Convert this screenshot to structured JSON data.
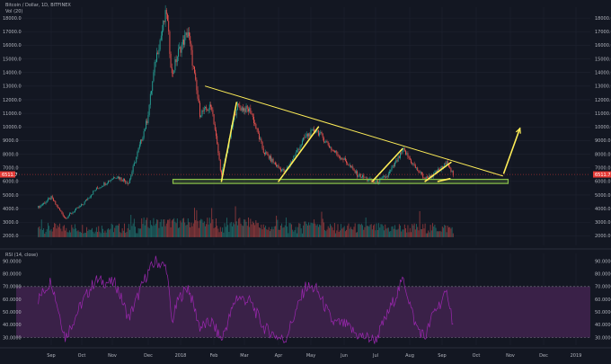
{
  "header": {
    "symbol_line": "Bitcoin / Dollar, 1D, BITFINEX",
    "volume_label": "Vol (20)"
  },
  "rsi_header": {
    "label": "RSI (14, close)"
  },
  "colors": {
    "background": "#131722",
    "up_candle": "#26a69a",
    "down_candle": "#ef5350",
    "trendline": "#ffee58",
    "support_band": "#8bc34a",
    "rsi_line": "#9c27b0",
    "rsi_band": "#3a2148",
    "price_tag": "#e53935"
  },
  "chart_data": [
    {
      "type": "candlestick",
      "title": "Bitcoin / Dollar, 1D, BITFINEX",
      "x_ticks": [
        "Sep",
        "Oct",
        "Nov",
        "Dec",
        "2018",
        "Feb",
        "Mar",
        "Apr",
        "May",
        "Jun",
        "Jul",
        "Aug",
        "Sep",
        "Oct",
        "Nov",
        "Dec",
        "2019"
      ],
      "y_ticks": [
        2000,
        3000,
        4000,
        5000,
        6000,
        7000,
        8000,
        9000,
        10000,
        11000,
        12000,
        13000,
        14000,
        15000,
        16000,
        17000,
        18000
      ],
      "y_tick_labels": [
        "2000.0",
        "3000.0",
        "4000.0",
        "5000.0",
        "6000.0",
        "7000.0",
        "8000.0",
        "9000.0",
        "10000.0",
        "11000.0",
        "12000.0",
        "13000.0",
        "14000.0",
        "15000.0",
        "16000.0",
        "17000.0",
        "18000.0"
      ],
      "ylim": [
        1300,
        18800
      ],
      "last_price": 6511.7,
      "last_price_label": "6511.7",
      "close_path": [
        [
          "2017-08-20",
          4100
        ],
        [
          "2017-09-01",
          4800
        ],
        [
          "2017-09-14",
          3300
        ],
        [
          "2017-09-30",
          4300
        ],
        [
          "2017-10-12",
          5400
        ],
        [
          "2017-10-31",
          6400
        ],
        [
          "2017-11-12",
          5900
        ],
        [
          "2017-11-29",
          10500
        ],
        [
          "2017-12-07",
          15000
        ],
        [
          "2017-12-17",
          18500
        ],
        [
          "2017-12-22",
          13800
        ],
        [
          "2017-12-28",
          15500
        ],
        [
          "2018-01-06",
          17000
        ],
        [
          "2018-01-17",
          11000
        ],
        [
          "2018-01-28",
          11500
        ],
        [
          "2018-02-06",
          6400
        ],
        [
          "2018-02-20",
          11500
        ],
        [
          "2018-03-05",
          11200
        ],
        [
          "2018-03-17",
          8200
        ],
        [
          "2018-03-31",
          7000
        ],
        [
          "2018-04-06",
          6700
        ],
        [
          "2018-04-25",
          9300
        ],
        [
          "2018-05-05",
          9800
        ],
        [
          "2018-05-20",
          8300
        ],
        [
          "2018-06-01",
          7500
        ],
        [
          "2018-06-12",
          6500
        ],
        [
          "2018-06-29",
          5900
        ],
        [
          "2018-07-10",
          6400
        ],
        [
          "2018-07-25",
          8300
        ],
        [
          "2018-08-05",
          7000
        ],
        [
          "2018-08-14",
          6200
        ],
        [
          "2018-08-22",
          6500
        ],
        [
          "2018-09-04",
          7400
        ],
        [
          "2018-09-09",
          6500
        ]
      ],
      "trendlines": [
        {
          "from": [
            "2018-01-22",
            13000
          ],
          "to": [
            "2018-10-25",
            6400
          ]
        },
        {
          "from": [
            "2018-02-06",
            6000
          ],
          "to": [
            "2018-02-20",
            11800
          ]
        },
        {
          "from": [
            "2018-03-31",
            6000
          ],
          "to": [
            "2018-05-07",
            10000
          ]
        },
        {
          "from": [
            "2018-06-26",
            6000
          ],
          "to": [
            "2018-07-24",
            8400
          ]
        },
        {
          "from": [
            "2018-08-14",
            6000
          ],
          "to": [
            "2018-09-07",
            7400
          ]
        },
        {
          "from": [
            "2018-08-26",
            6000
          ],
          "to": [
            "2018-09-06",
            6200
          ]
        },
        {
          "from": [
            "2018-10-26",
            6600
          ],
          "to": [
            "2018-11-10",
            9900
          ]
        }
      ],
      "support_zone": {
        "from": "2017-12-23",
        "to": "2018-10-30",
        "low": 5850,
        "high": 6150
      },
      "volume_baseline": 1900
    },
    {
      "type": "line",
      "title": "RSI (14, close)",
      "y_ticks": [
        30,
        40,
        50,
        60,
        70,
        80,
        90
      ],
      "y_tick_labels": [
        "30.0000",
        "40.0000",
        "50.0000",
        "60.0000",
        "70.0000",
        "80.0000",
        "90.0000"
      ],
      "ylim": [
        24,
        96
      ],
      "band": [
        30,
        70
      ],
      "rsi_path": [
        [
          "2017-08-20",
          60
        ],
        [
          "2017-09-01",
          75
        ],
        [
          "2017-09-14",
          30
        ],
        [
          "2017-09-30",
          58
        ],
        [
          "2017-10-12",
          75
        ],
        [
          "2017-10-31",
          72
        ],
        [
          "2017-11-12",
          45
        ],
        [
          "2017-11-29",
          80
        ],
        [
          "2017-12-07",
          90
        ],
        [
          "2017-12-17",
          85
        ],
        [
          "2017-12-22",
          42
        ],
        [
          "2017-12-28",
          60
        ],
        [
          "2018-01-06",
          70
        ],
        [
          "2018-01-17",
          38
        ],
        [
          "2018-01-28",
          42
        ],
        [
          "2018-02-06",
          28
        ],
        [
          "2018-02-20",
          62
        ],
        [
          "2018-03-05",
          58
        ],
        [
          "2018-03-17",
          38
        ],
        [
          "2018-03-31",
          30
        ],
        [
          "2018-04-06",
          28
        ],
        [
          "2018-04-25",
          70
        ],
        [
          "2018-05-05",
          68
        ],
        [
          "2018-05-20",
          42
        ],
        [
          "2018-06-01",
          40
        ],
        [
          "2018-06-12",
          32
        ],
        [
          "2018-06-29",
          28
        ],
        [
          "2018-07-10",
          48
        ],
        [
          "2018-07-25",
          76
        ],
        [
          "2018-08-05",
          40
        ],
        [
          "2018-08-14",
          30
        ],
        [
          "2018-08-22",
          50
        ],
        [
          "2018-09-04",
          65
        ],
        [
          "2018-09-09",
          40
        ]
      ]
    }
  ]
}
